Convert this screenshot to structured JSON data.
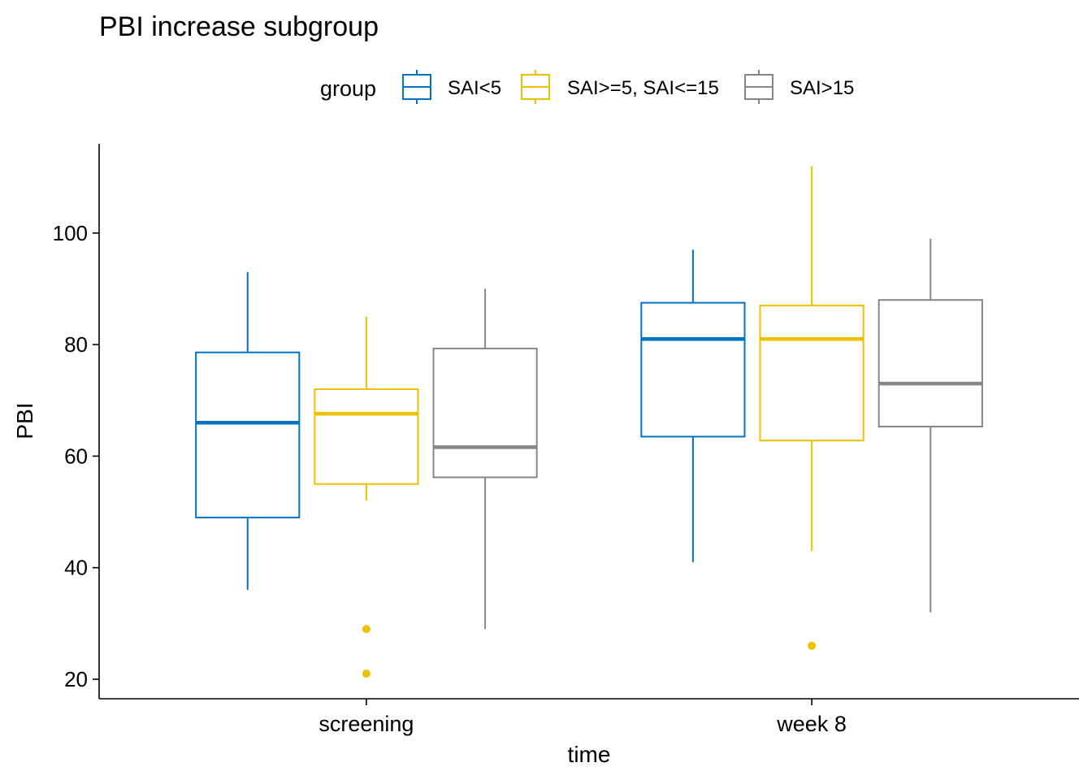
{
  "chart_data": {
    "type": "box",
    "title": "PBI increase subgroup",
    "xlabel": "time",
    "ylabel": "PBI",
    "ylim": [
      16.5,
      116
    ],
    "yticks": [
      20,
      40,
      60,
      80,
      100
    ],
    "grid": false,
    "legend_position": "top",
    "legend_title": "group",
    "categories": [
      "screening",
      "week 8"
    ],
    "series": [
      {
        "name": "SAI<5",
        "color": "#0073C2",
        "boxes": [
          {
            "category": "screening",
            "whisker_low": 36,
            "q1": 49,
            "median": 66,
            "q3": 78.6,
            "whisker_high": 93,
            "outliers": []
          },
          {
            "category": "week 8",
            "whisker_low": 41,
            "q1": 63.5,
            "median": 81,
            "q3": 87.5,
            "whisker_high": 97,
            "outliers": []
          }
        ]
      },
      {
        "name": "SAI>=5, SAI<=15",
        "color": "#EFC000",
        "boxes": [
          {
            "category": "screening",
            "whisker_low": 52,
            "q1": 55,
            "median": 67.6,
            "q3": 72,
            "whisker_high": 85,
            "outliers": [
              29,
              21
            ]
          },
          {
            "category": "week 8",
            "whisker_low": 43,
            "q1": 62.8,
            "median": 81,
            "q3": 87,
            "whisker_high": 112,
            "outliers": [
              26
            ]
          }
        ]
      },
      {
        "name": "SAI>15",
        "color": "#868686",
        "boxes": [
          {
            "category": "screening",
            "whisker_low": 29,
            "q1": 56.2,
            "median": 61.6,
            "q3": 79.3,
            "whisker_high": 90,
            "outliers": []
          },
          {
            "category": "week 8",
            "whisker_low": 32,
            "q1": 65.3,
            "median": 73,
            "q3": 88,
            "whisker_high": 99,
            "outliers": []
          }
        ]
      }
    ]
  }
}
